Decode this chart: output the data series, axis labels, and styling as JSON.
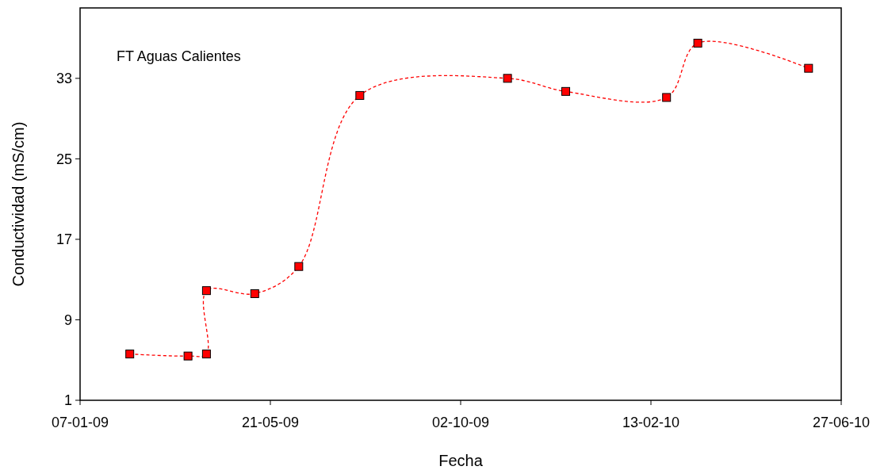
{
  "chart_data": {
    "type": "line",
    "xlabel": "Fecha",
    "ylabel": "Conductividad (mS/cm)",
    "annotations": [
      "FT Aguas Calientes"
    ],
    "x": [
      "2009-02-11",
      "2009-03-24",
      "2009-04-06",
      "2009-04-06",
      "2009-05-10",
      "2009-06-10",
      "2009-07-23",
      "2009-11-04",
      "2009-12-15",
      "2010-02-24",
      "2010-03-18",
      "2010-06-04"
    ],
    "series": [
      {
        "color": "#ff0000",
        "values": [
          5.6,
          5.4,
          5.6,
          11.9,
          11.6,
          14.3,
          31.3,
          33.0,
          31.7,
          31.1,
          36.5,
          34.0
        ]
      }
    ],
    "xlim": [
      "2009-01-07",
      "2010-06-27"
    ],
    "xticks": [
      {
        "value": "2009-01-07",
        "label": "07-01-09"
      },
      {
        "value": "2009-05-21",
        "label": "21-05-09"
      },
      {
        "value": "2009-10-02",
        "label": "02-10-09"
      },
      {
        "value": "2010-02-13",
        "label": "13-02-10"
      },
      {
        "value": "2010-06-27",
        "label": "27-06-10"
      }
    ],
    "ylim": [
      1,
      40
    ],
    "yticks": [
      1,
      9,
      17,
      25,
      33
    ],
    "marker": "square",
    "line_style": "dashed",
    "grid": false
  }
}
